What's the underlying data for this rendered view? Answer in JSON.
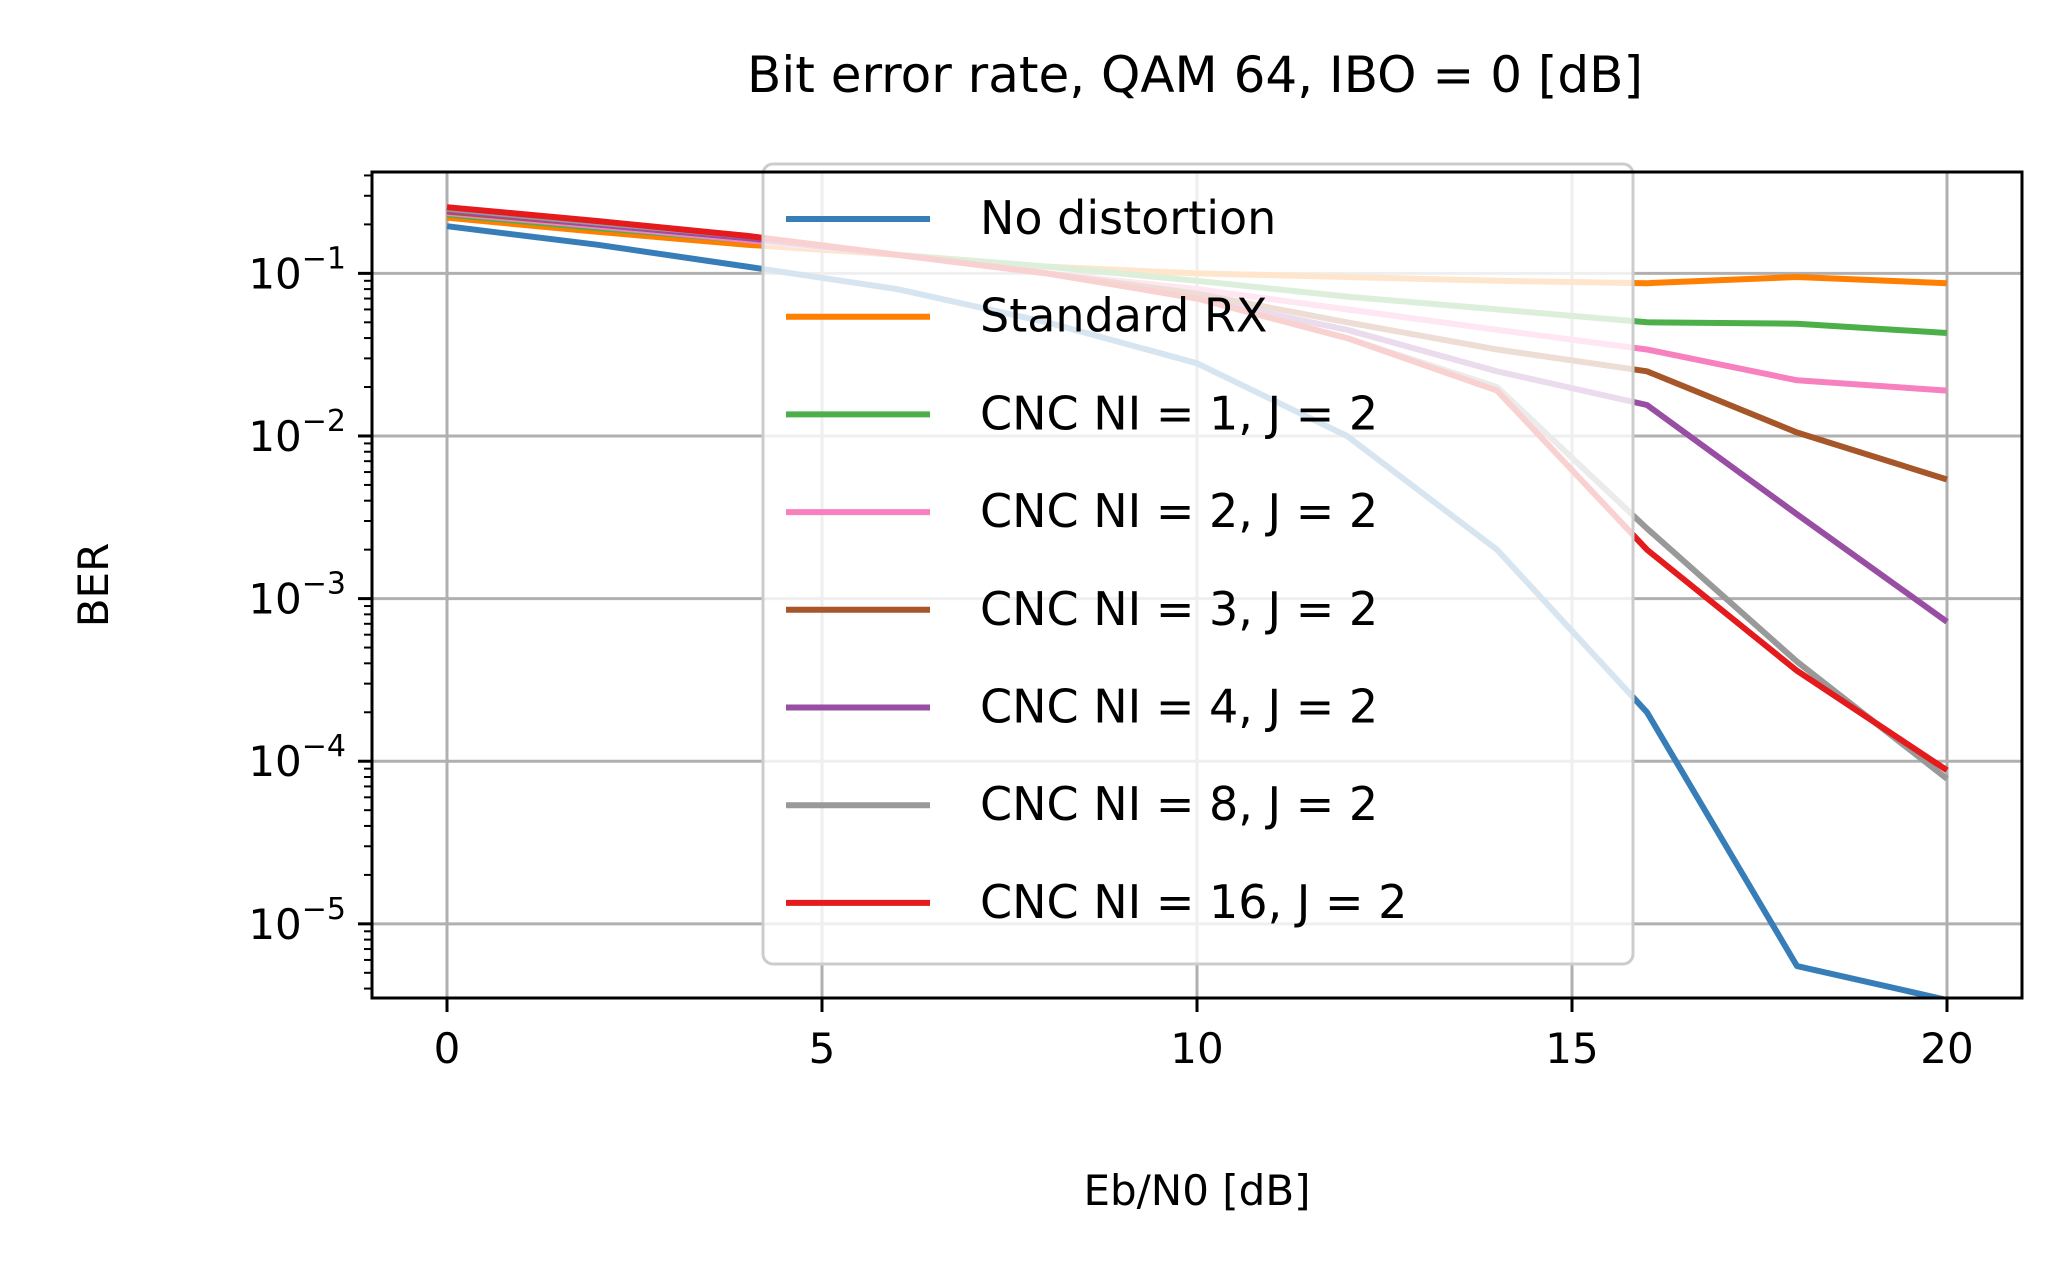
{
  "chart_data": {
    "type": "line",
    "title": "Bit error rate, QAM 64, IBO = 0 [dB]",
    "xlabel": "Eb/N0 [dB]",
    "ylabel": "BER",
    "xlim": [
      -1,
      21
    ],
    "ylim": [
      3.5e-06,
      0.42
    ],
    "yscale": "log",
    "x_ticks": [
      0,
      5,
      10,
      15,
      20
    ],
    "x_tick_labels": [
      "0",
      "5",
      "10",
      "15",
      "20"
    ],
    "y_ticks": [
      1e-05,
      0.0001,
      0.001,
      0.01,
      0.1
    ],
    "y_tick_labels": [
      {
        "base": "10",
        "exp": "−5"
      },
      {
        "base": "10",
        "exp": "−4"
      },
      {
        "base": "10",
        "exp": "−3"
      },
      {
        "base": "10",
        "exp": "−2"
      },
      {
        "base": "10",
        "exp": "−1"
      }
    ],
    "grid": true,
    "legend_position": "top-center",
    "x": [
      0,
      2,
      4,
      6,
      8,
      10,
      12,
      14,
      16,
      18,
      20
    ],
    "series": [
      {
        "name": "No distortion",
        "color": "#377eb8",
        "values": [
          0.195,
          0.15,
          0.11,
          0.08,
          0.05,
          0.028,
          0.01,
          0.002,
          0.0002,
          5.5e-06,
          3.4e-06
        ]
      },
      {
        "name": "Standard RX",
        "color": "#ff7f00",
        "values": [
          0.22,
          0.18,
          0.15,
          0.13,
          0.11,
          0.1,
          0.095,
          0.09,
          0.087,
          0.095,
          0.087
        ]
      },
      {
        "name": "CNC NI = 1, J = 2",
        "color": "#4daf4a",
        "values": [
          0.23,
          0.19,
          0.16,
          0.13,
          0.11,
          0.09,
          0.072,
          0.06,
          0.05,
          0.049,
          0.043
        ]
      },
      {
        "name": "CNC NI = 2, J = 2",
        "color": "#f781bf",
        "values": [
          0.235,
          0.195,
          0.16,
          0.13,
          0.1,
          0.08,
          0.06,
          0.045,
          0.034,
          0.022,
          0.019
        ]
      },
      {
        "name": "CNC NI = 3, J = 2",
        "color": "#a65628",
        "values": [
          0.24,
          0.2,
          0.165,
          0.13,
          0.1,
          0.075,
          0.05,
          0.034,
          0.025,
          0.0105,
          0.0054
        ]
      },
      {
        "name": "CNC NI = 4, J = 2",
        "color": "#984ea3",
        "values": [
          0.245,
          0.2,
          0.165,
          0.13,
          0.1,
          0.07,
          0.045,
          0.025,
          0.0155,
          0.0033,
          0.00072
        ]
      },
      {
        "name": "CNC NI = 8, J = 2",
        "color": "#999999",
        "values": [
          0.25,
          0.205,
          0.17,
          0.13,
          0.1,
          0.07,
          0.04,
          0.02,
          0.0027,
          0.00041,
          7.8e-05
        ]
      },
      {
        "name": "CNC NI = 16, J = 2",
        "color": "#e41a1c",
        "values": [
          0.255,
          0.21,
          0.17,
          0.13,
          0.1,
          0.07,
          0.04,
          0.019,
          0.002,
          0.00036,
          8.8e-05
        ]
      }
    ]
  }
}
